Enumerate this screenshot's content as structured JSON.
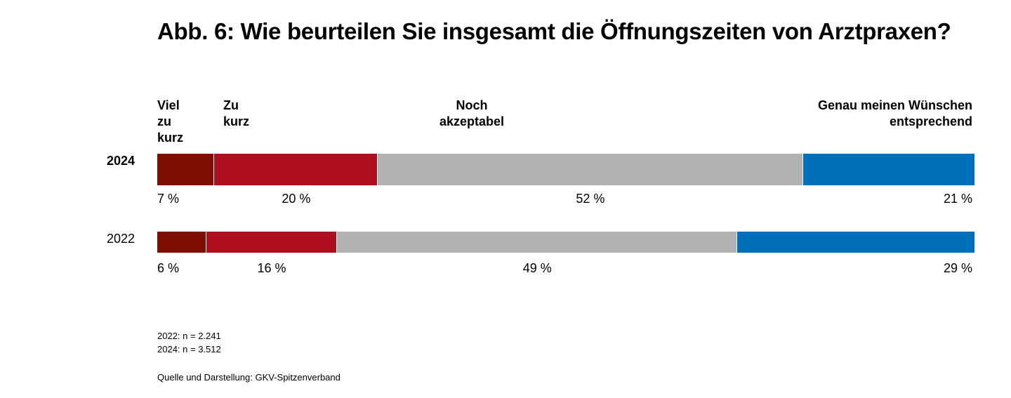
{
  "title": "Abb. 6: Wie beurteilen Sie insgesamt die Öffnungszeiten von Arztpraxen?",
  "chart_data": {
    "type": "bar",
    "orientation": "horizontal-stacked-100",
    "categories": [
      "Viel\nzu\nkurz",
      "Zu\nkurz",
      "Noch\nakzeptabel",
      "Genau meinen Wünschen\nentsprechend"
    ],
    "colors": [
      "#7f0f03",
      "#ae1020",
      "#b2b2b2",
      "#0070ba"
    ],
    "rows": [
      {
        "label": "2024",
        "bold": true,
        "values": [
          7,
          20,
          52,
          21
        ],
        "value_labels": [
          "7 %",
          "20 %",
          "52 %",
          "21 %"
        ]
      },
      {
        "label": "2022",
        "bold": false,
        "values": [
          6,
          16,
          49,
          29
        ],
        "value_labels": [
          "6 %",
          "16 %",
          "49 %",
          "29 %"
        ]
      }
    ],
    "xlim": [
      0,
      100
    ],
    "legend": "top"
  },
  "notes": [
    "2022: n = 2.241",
    "2024: n = 3.512"
  ],
  "source": "Quelle und Darstellung: GKV-Spitzenverband"
}
